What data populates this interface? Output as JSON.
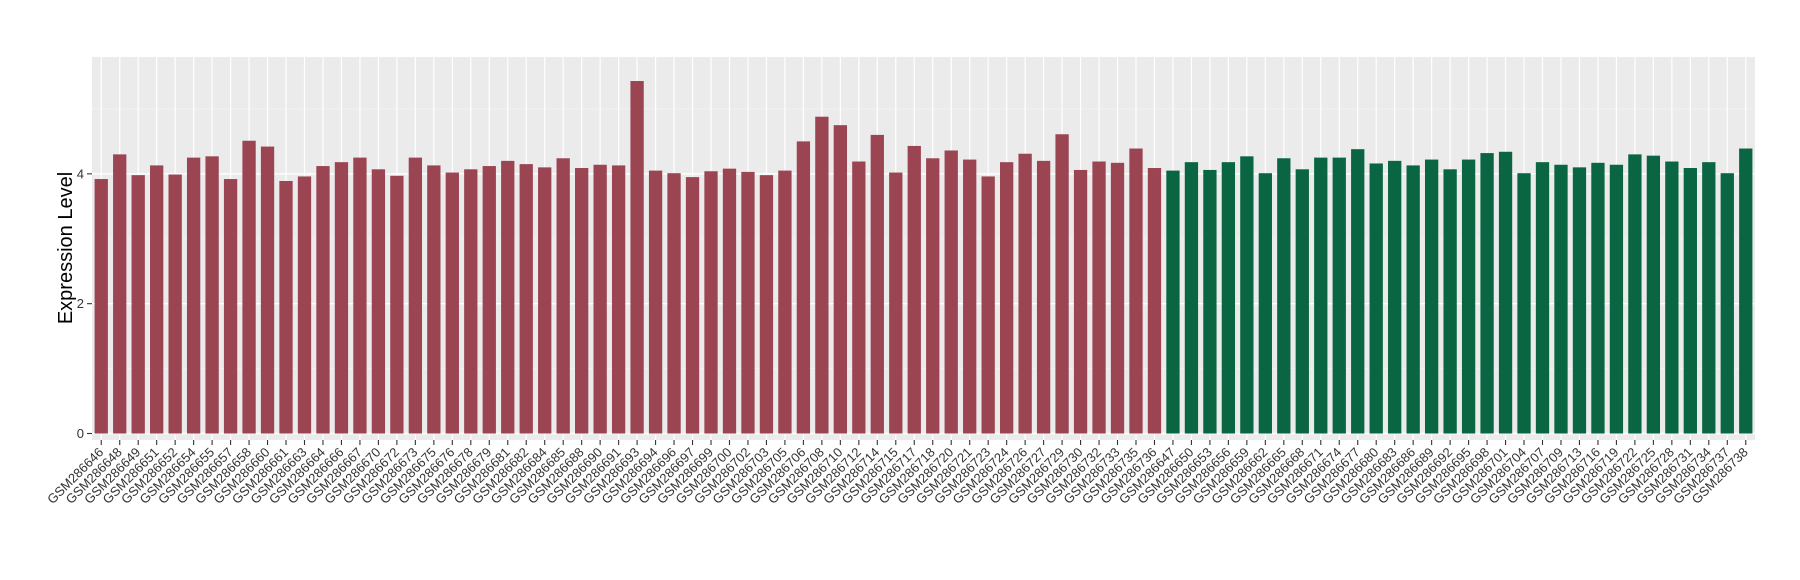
{
  "chart_data": {
    "type": "bar",
    "title": "",
    "xlabel": "",
    "ylabel": "Expression Level",
    "ylim": [
      -0.1,
      5.8
    ],
    "y_ticks": [
      0,
      2,
      4
    ],
    "grid": true,
    "legend": "none",
    "colors": {
      "group1": "#9b4553",
      "group2": "#0a6642",
      "panel_bg": "#ebebeb",
      "grid_major": "#ffffff",
      "grid_minor": "#f3f3f3"
    },
    "series": [
      {
        "color": "#9b4553",
        "categories": [
          "GSM286646",
          "GSM286648",
          "GSM286649",
          "GSM286651",
          "GSM286652",
          "GSM286654",
          "GSM286655",
          "GSM286657",
          "GSM286658",
          "GSM286660",
          "GSM286661",
          "GSM286663",
          "GSM286664",
          "GSM286666",
          "GSM286667",
          "GSM286670",
          "GSM286672",
          "GSM286673",
          "GSM286675",
          "GSM286676",
          "GSM286678",
          "GSM286679",
          "GSM286681",
          "GSM286682",
          "GSM286684",
          "GSM286685",
          "GSM286688",
          "GSM286690",
          "GSM286691",
          "GSM286693",
          "GSM286694",
          "GSM286696",
          "GSM286697",
          "GSM286699",
          "GSM286700",
          "GSM286702",
          "GSM286703",
          "GSM286705",
          "GSM286706",
          "GSM286708",
          "GSM286710",
          "GSM286712",
          "GSM286714",
          "GSM286715",
          "GSM286717",
          "GSM286718",
          "GSM286720",
          "GSM286721",
          "GSM286723",
          "GSM286724",
          "GSM286726",
          "GSM286727",
          "GSM286729",
          "GSM286730",
          "GSM286732",
          "GSM286733",
          "GSM286735",
          "GSM286736"
        ],
        "values": [
          3.92,
          4.3,
          3.98,
          4.13,
          3.99,
          4.25,
          4.27,
          3.92,
          4.51,
          4.42,
          3.89,
          3.96,
          4.12,
          4.18,
          4.25,
          4.07,
          3.97,
          4.25,
          4.13,
          4.02,
          4.07,
          4.12,
          4.2,
          4.15,
          4.1,
          4.24,
          4.09,
          4.14,
          4.13,
          5.43,
          4.05,
          4.01,
          3.95,
          4.04,
          4.08,
          4.03,
          3.98,
          4.05,
          4.5,
          4.88,
          4.75,
          4.19,
          4.6,
          4.02,
          4.43,
          4.24,
          4.36,
          4.22,
          3.96,
          4.18,
          4.31,
          4.2,
          4.61,
          4.06,
          4.19,
          4.17,
          4.39,
          4.09
        ]
      },
      {
        "color": "#0a6642",
        "categories": [
          "GSM286647",
          "GSM286650",
          "GSM286653",
          "GSM286656",
          "GSM286659",
          "GSM286662",
          "GSM286665",
          "GSM286668",
          "GSM286671",
          "GSM286674",
          "GSM286677",
          "GSM286680",
          "GSM286683",
          "GSM286686",
          "GSM286689",
          "GSM286692",
          "GSM286695",
          "GSM286698",
          "GSM286701",
          "GSM286704",
          "GSM286707",
          "GSM286709",
          "GSM286713",
          "GSM286716",
          "GSM286719",
          "GSM286722",
          "GSM286725",
          "GSM286728",
          "GSM286731",
          "GSM286734",
          "GSM286737",
          "GSM286738"
        ],
        "values": [
          4.05,
          4.18,
          4.06,
          4.18,
          4.27,
          4.01,
          4.24,
          4.07,
          4.25,
          4.25,
          4.38,
          4.16,
          4.2,
          4.13,
          4.22,
          4.07,
          4.22,
          4.32,
          4.34,
          4.01,
          4.18,
          4.14,
          4.1,
          4.17,
          4.14,
          4.3,
          4.28,
          4.19,
          4.09,
          4.18,
          4.01,
          4.39
        ]
      }
    ]
  }
}
